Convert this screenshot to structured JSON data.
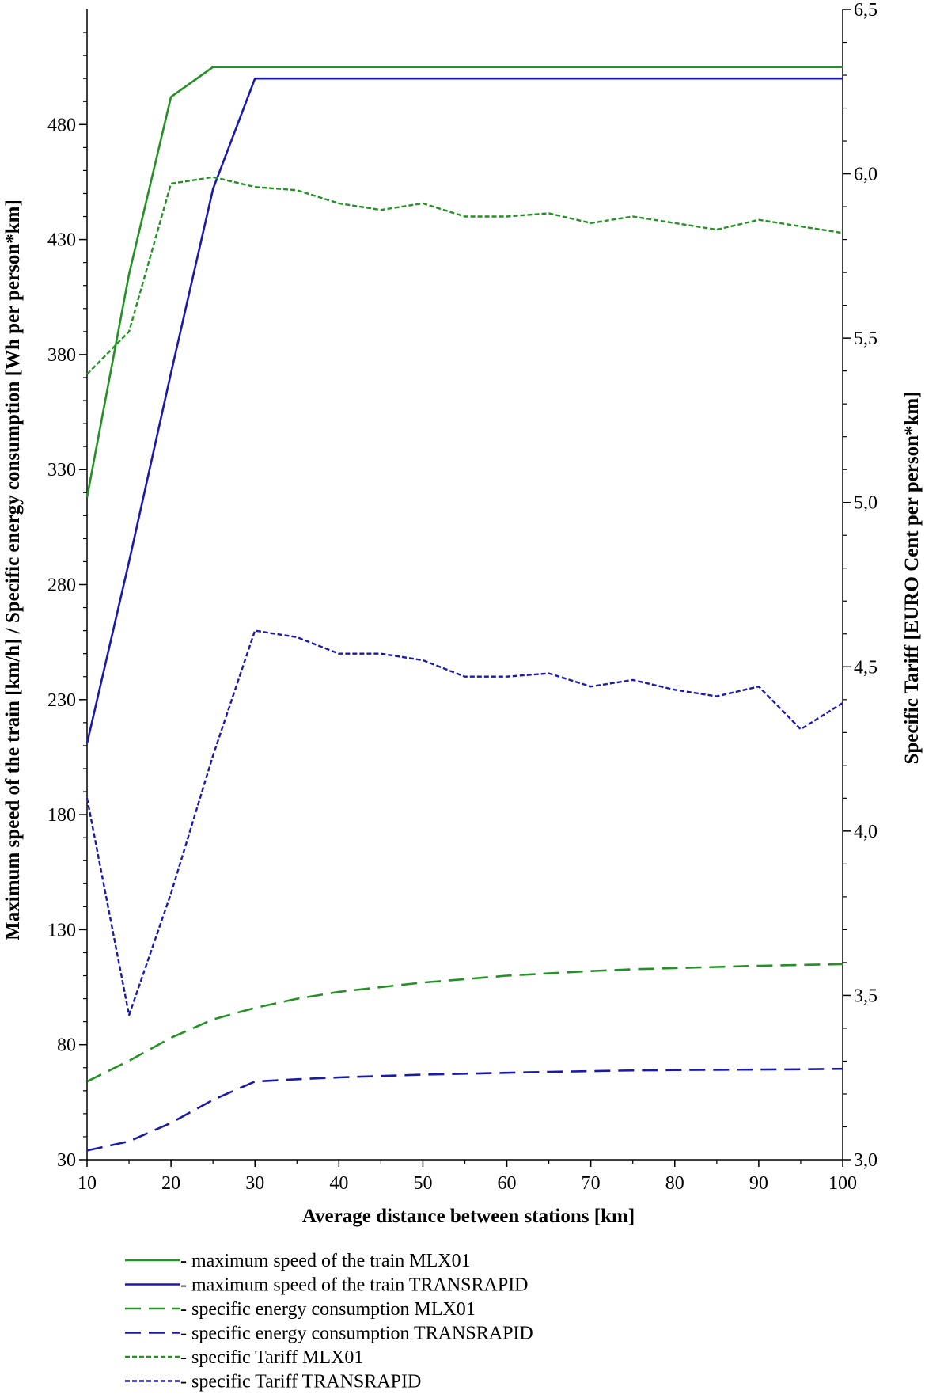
{
  "chart_data": {
    "type": "line",
    "xlabel": "Average distance between stations [km]",
    "ylabel_left": "Maximum speed of the train [km/h] / Specific energy consumption [Wh per person*km]",
    "ylabel_right": "Specific Tariff  [EURO Cent per person*km]",
    "x_ticks": [
      "10",
      "20",
      "30",
      "40",
      "50",
      "60",
      "70",
      "80",
      "90",
      "100"
    ],
    "y_left_ticks": [
      "30",
      "80",
      "130",
      "180",
      "230",
      "280",
      "330",
      "380",
      "430",
      "480"
    ],
    "y_right_ticks": [
      "3,0",
      "3,5",
      "4,0",
      "4,5",
      "5,0",
      "5,5",
      "6,0",
      "6,5"
    ],
    "xlim": [
      10,
      100
    ],
    "ylim_left": [
      30,
      530
    ],
    "ylim_right": [
      3.0,
      6.5
    ],
    "grid": false,
    "legend_position": "bottom",
    "x": [
      10,
      15,
      20,
      25,
      30,
      35,
      40,
      45,
      50,
      55,
      60,
      65,
      70,
      75,
      80,
      85,
      90,
      95,
      100
    ],
    "series": [
      {
        "name": "- maximum speed of the train MLX01",
        "axis": "left",
        "color": "#239123",
        "dash": "solid",
        "values": [
          318,
          415,
          492,
          505,
          505,
          505,
          505,
          505,
          505,
          505,
          505,
          505,
          505,
          505,
          505,
          505,
          505,
          505,
          505
        ]
      },
      {
        "name": "- maximum speed of the train TRANSRAPID",
        "axis": "left",
        "color": "#1a1aaa",
        "dash": "solid",
        "values": [
          211,
          290,
          372,
          452,
          500,
          500,
          500,
          500,
          500,
          500,
          500,
          500,
          500,
          500,
          500,
          500,
          500,
          500,
          500
        ]
      },
      {
        "name": "- specific energy consumption MLX01",
        "axis": "left",
        "color": "#239123",
        "dash": "long",
        "values": [
          64,
          73,
          83,
          91,
          96,
          100,
          103,
          105,
          107,
          108.5,
          110,
          111,
          112,
          112.8,
          113.3,
          113.8,
          114.3,
          114.7,
          115
        ]
      },
      {
        "name": "- specific energy consumption TRANSRAPID",
        "axis": "left",
        "color": "#1a1aaa",
        "dash": "long",
        "values": [
          34,
          38,
          46,
          56,
          64,
          65,
          65.8,
          66.4,
          67,
          67.4,
          67.8,
          68.2,
          68.5,
          68.8,
          69,
          69.1,
          69.2,
          69.3,
          69.5
        ]
      },
      {
        "name": "- specific Tariff MLX01",
        "axis": "right",
        "color": "#239123",
        "dash": "short",
        "values": [
          5.39,
          5.52,
          5.97,
          5.99,
          5.96,
          5.95,
          5.91,
          5.89,
          5.91,
          5.87,
          5.87,
          5.88,
          5.85,
          5.87,
          5.85,
          5.83,
          5.86,
          5.84,
          5.82
        ]
      },
      {
        "name": "- specific Tariff  TRANSRAPID",
        "axis": "right",
        "color": "#1a1aaa",
        "dash": "short",
        "values": [
          4.1,
          3.44,
          3.81,
          4.23,
          4.61,
          4.59,
          4.54,
          4.54,
          4.52,
          4.47,
          4.47,
          4.48,
          4.44,
          4.46,
          4.43,
          4.41,
          4.44,
          4.31,
          4.39
        ]
      }
    ]
  }
}
